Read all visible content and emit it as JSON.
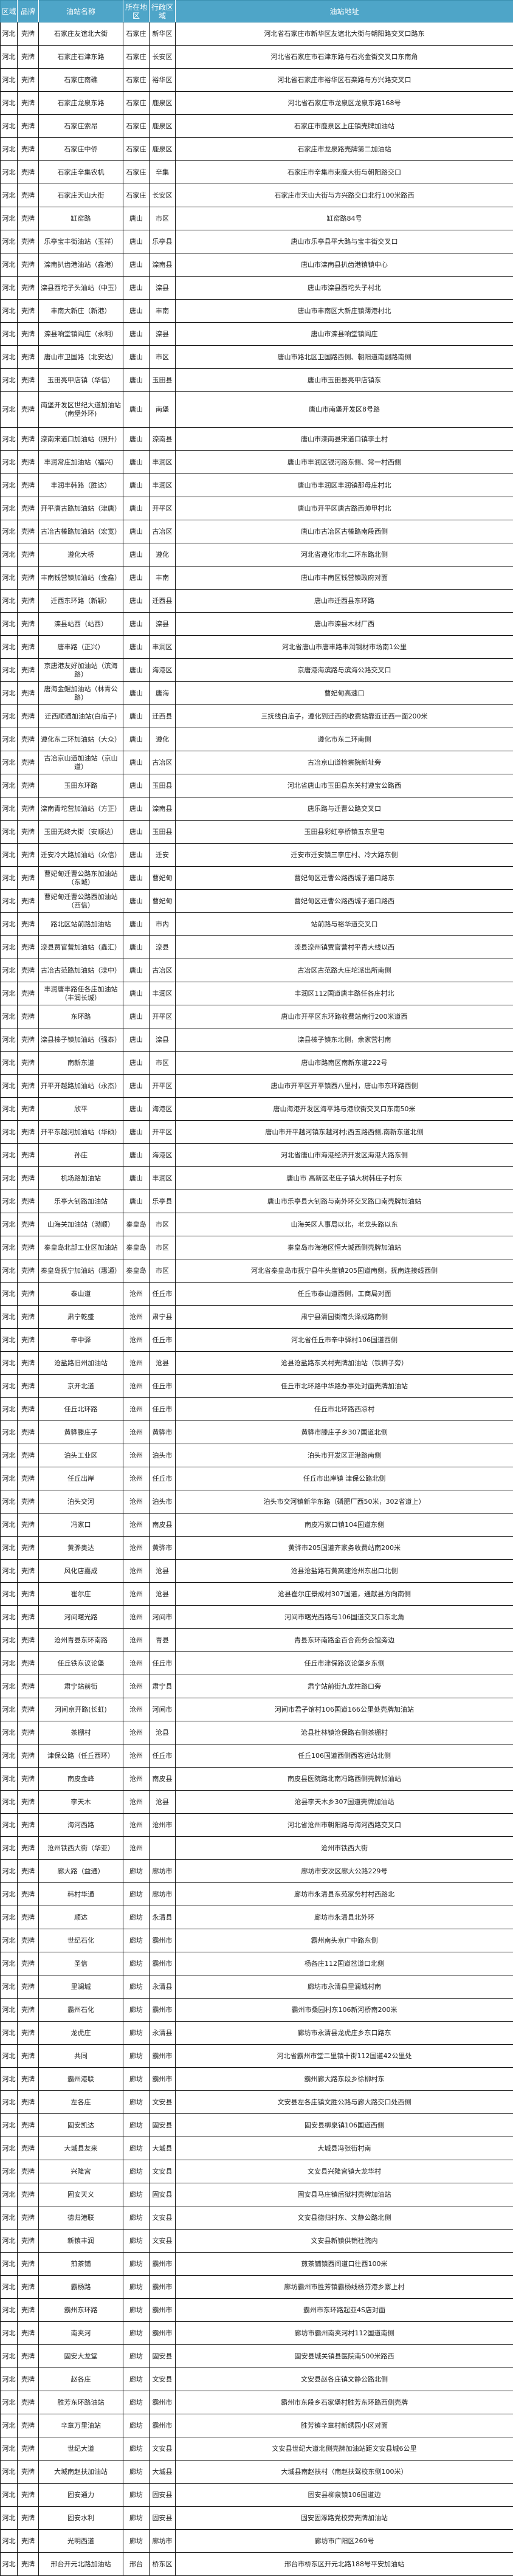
{
  "table": {
    "headers": [
      "区域",
      "品牌",
      "油站名称",
      "所在地区",
      "行政区域",
      "油站地址"
    ],
    "rows": [
      [
        "河北",
        "壳牌",
        "石家庄友谊北大街",
        "石家庄",
        "新华区",
        "河北省石家庄市新华区友谊北大街与朝阳路交叉口路东"
      ],
      [
        "河北",
        "壳牌",
        "石家庄石津东路",
        "石家庄",
        "长安区",
        "河北省石家庄市石津东路与石兆金街交叉口东南角"
      ],
      [
        "河北",
        "壳牌",
        "石家庄南礁",
        "石家庄",
        "裕华区",
        "河北省石家庄市裕华区石栾路与方兴路交叉口"
      ],
      [
        "河北",
        "壳牌",
        "石家庄龙泉东路",
        "石家庄",
        "鹿泉区",
        "河北省石家庄市龙泉区龙泉东路168号"
      ],
      [
        "河北",
        "壳牌",
        "石家庄索昂",
        "石家庄",
        "鹿泉区",
        "石家庄市鹿泉区上庄镇壳牌加油站"
      ],
      [
        "河北",
        "壳牌",
        "石家庄中侨",
        "石家庄",
        "鹿泉区",
        "石家庄市龙泉路壳牌第二加油站"
      ],
      [
        "河北",
        "壳牌",
        "石家庄辛集农机",
        "石家庄",
        "辛集",
        "石家庄市辛集市束鹿大街与朝阳路交口"
      ],
      [
        "河北",
        "壳牌",
        "石家庄天山大街",
        "石家庄",
        "长安区",
        "石家庄市天山大街与方兴路交口北行100米路西"
      ],
      [
        "河北",
        "壳牌",
        "缸窑路",
        "唐山",
        "市区",
        "缸窑路84号"
      ],
      [
        "河北",
        "壳牌",
        "乐亭宝丰街油站（玉祥）",
        "唐山",
        "乐亭县",
        "唐山市乐亭县平大路与宝丰街交叉口"
      ],
      [
        "河北",
        "壳牌",
        "滦南扒齿港油站（鑫港）",
        "唐山",
        "滦南县",
        "唐山市滦南县扒齿港镇镇中心"
      ],
      [
        "河北",
        "壳牌",
        "滦县西坨子头油站（中玉）",
        "唐山",
        "滦县",
        "唐山市滦县西坨头子村北"
      ],
      [
        "河北",
        "壳牌",
        "丰南大新庄（新港）",
        "唐山",
        "丰南",
        "唐山市丰南区大新庄镇薄港村北"
      ],
      [
        "河北",
        "壳牌",
        "滦县响堂镇阎庄（永明）",
        "唐山",
        "滦县",
        "唐山市滦县响堂镇阎庄"
      ],
      [
        "河北",
        "壳牌",
        "唐山市卫国路（北安达）",
        "唐山",
        "市区",
        "唐山市路北区卫国路西侧、朝阳道南副路南侧"
      ],
      [
        "河北",
        "壳牌",
        "玉田亮甲店镇（华信）",
        "唐山",
        "玉田县",
        "唐山市玉田县亮甲店镇东"
      ],
      [
        "河北",
        "壳牌",
        "南堡开发区世纪大道加油站\n(南堡外环)",
        "唐山",
        "南堡",
        "唐山市南堡开发区8号路"
      ],
      [
        "河北",
        "壳牌",
        "滦南宋道口加油站（照升）",
        "唐山",
        "滦南县",
        "唐山市滦南县宋道口镇李土村"
      ],
      [
        "河北",
        "壳牌",
        "丰润常庄加油站（福兴）",
        "唐山",
        "丰润区",
        "唐山市丰润区银河路东侧、常一村西侧"
      ],
      [
        "河北",
        "壳牌",
        "丰润丰韩路（胜达）",
        "唐山",
        "丰润区",
        "唐山市丰润区丰润镇那母庄村北"
      ],
      [
        "河北",
        "壳牌",
        "开平唐古路加油站（津唐）",
        "唐山",
        "开平区",
        "唐山市开平区唐古路西帅甲村北"
      ],
      [
        "河北",
        "壳牌",
        "古冶古榛路加油站（宏宽）",
        "唐山",
        "古冶区",
        "唐山市古冶区古榛路南段西侧"
      ],
      [
        "河北",
        "壳牌",
        "遵化大桥",
        "唐山",
        "遵化",
        "河北省遵化市北二环东路北侧"
      ],
      [
        "河北",
        "壳牌",
        "丰南钱营镇加油站（金鑫）",
        "唐山",
        "丰南",
        "唐山市丰南区钱营镇政府对面"
      ],
      [
        "河北",
        "壳牌",
        "迁西东环路（新颖）",
        "唐山",
        "迁西县",
        "唐山市迁西县东环路"
      ],
      [
        "河北",
        "壳牌",
        "滦县站西（站西）",
        "唐山",
        "滦县",
        "唐山市滦县木材厂西"
      ],
      [
        "河北",
        "壳牌",
        "唐丰路（正兴）",
        "唐山",
        "丰润区",
        "河北省唐山市唐丰路丰润钢材市场南1公里"
      ],
      [
        "河北",
        "壳牌",
        "京唐港友好加油站（滨海路）",
        "唐山",
        "海港区",
        "京唐港海滨路与滨海公路交叉口"
      ],
      [
        "河北",
        "壳牌",
        "唐海金鲲加油站（林青公路）",
        "唐山",
        "唐海",
        "曹妃甸高速口"
      ],
      [
        "河北",
        "壳牌",
        "迁西顺通加油站(白庙子)",
        "唐山",
        "迁西县",
        "三抚线白庙子，遵化到迁西的收费站靠近迁西一面200米"
      ],
      [
        "河北",
        "壳牌",
        "遵化东二环加油站（大众）",
        "唐山",
        "遵化",
        "遵化市东二环南侧"
      ],
      [
        "河北",
        "壳牌",
        "古冶京山道加油站（京山道）",
        "唐山",
        "古冶区",
        "古冶京山道检察院新址旁"
      ],
      [
        "河北",
        "壳牌",
        "玉田东环路",
        "唐山",
        "玉田县",
        "河北省唐山市玉田县东关村遵宝公路西"
      ],
      [
        "河北",
        "壳牌",
        "滦南青坨营加油站（方正）",
        "唐山",
        "滦南县",
        "唐乐路与迁曹公路交叉口"
      ],
      [
        "河北",
        "壳牌",
        "玉田无终大街（安顺达）",
        "唐山",
        "玉田县",
        "玉田县彩虹亭桥镇五东里屯"
      ],
      [
        "河北",
        "壳牌",
        "迁安冷大路加油站（众信）",
        "唐山",
        "迁安",
        "迁安市迁安镇三李庄村、冷大路东侧"
      ],
      [
        "河北",
        "壳牌",
        "曹妃甸迁曹公路东加油站（东城）",
        "唐山",
        "曹妃甸",
        "曹妃甸区迁曹公路西城子道口路东"
      ],
      [
        "河北",
        "壳牌",
        "曹妃甸迁曹公路西加油站（西信）",
        "唐山",
        "曹妃甸",
        "曹妃甸区迁曹公路西城子道口路西"
      ],
      [
        "河北",
        "壳牌",
        "路北区站前路加油站",
        "唐山",
        "市内",
        "站前路与裕华道交叉口"
      ],
      [
        "河北",
        "壳牌",
        "滦县贾官营加油站（鑫汇）",
        "唐山",
        "滦县",
        "滦县滦州镇贾官营村平青大线以西"
      ],
      [
        "河北",
        "壳牌",
        "古冶古范路加油站（滦中）",
        "唐山",
        "古冶区",
        "古冶区古范路大庄坨派出所南侧"
      ],
      [
        "河北",
        "壳牌",
        "丰润唐丰路任各庄加油站（丰润长城）",
        "唐山",
        "丰润区",
        "丰润区112国道唐丰路任各庄村北"
      ],
      [
        "河北",
        "壳牌",
        "东环路",
        "唐山",
        "开平区",
        "唐山市开平区东环路收费站南行200米道西"
      ],
      [
        "河北",
        "壳牌",
        "滦县榛子镇加油站（强泰）",
        "唐山",
        "滦县",
        "滦县榛子镇东北侧，余家营村南"
      ],
      [
        "河北",
        "壳牌",
        "南新东道",
        "唐山",
        "市区",
        "唐山市路南区南新东道222号"
      ],
      [
        "河北",
        "壳牌",
        "开平开越路加油站（永杰）",
        "唐山",
        "开平区",
        "唐山市开平区开平镇西八里村，唐山市东环路西侧"
      ],
      [
        "河北",
        "壳牌",
        "欣平",
        "唐山",
        "海港区",
        "唐山海港开发区海平路与港欣街交叉口东南50米"
      ],
      [
        "河北",
        "壳牌",
        "开平东越河加油站（华硕）",
        "唐山",
        "开平区",
        "唐山市开平越河镇东越河村;西五路西侧,南新东道北侧"
      ],
      [
        "河北",
        "壳牌",
        "孙庄",
        "唐山",
        "海港区",
        "河北省唐山市海港经济开发区海港大路东侧"
      ],
      [
        "河北",
        "壳牌",
        "机场路加油站",
        "唐山",
        "丰润区",
        "唐山市 高新区老庄子镇大树韩庄子村东"
      ],
      [
        "河北",
        "壳牌",
        "乐亭大钊路加油站",
        "唐山",
        "乐亭县",
        "唐山市乐亭县大钊路与南外环交叉路口南壳牌加油站"
      ],
      [
        "河北",
        "壳牌",
        "山海关加油站（渤顺）",
        "秦皇岛",
        "市区",
        "山海关区人事局以北，老龙头路以东"
      ],
      [
        "河北",
        "壳牌",
        "秦皇岛北部工业区加油站",
        "秦皇岛",
        "市区",
        "秦皇岛市海港区恒大城西侧壳牌加油站"
      ],
      [
        "河北",
        "壳牌",
        "秦皇岛抚宁加油站（惠通）",
        "秦皇岛",
        "市区",
        "河北省秦皇岛市抚宁县牛头崖镇205国道南侧，抚南连接线西侧"
      ],
      [
        "河北",
        "壳牌",
        "泰山道",
        "沧州",
        "任丘市",
        "任丘市泰山道西侧，工商局对面"
      ],
      [
        "河北",
        "壳牌",
        "肃宁乾盛",
        "沧州",
        "肃宁县",
        "肃宁县清园街南头泽成路南侧"
      ],
      [
        "河北",
        "壳牌",
        "辛中驿",
        "沧州",
        "任丘市",
        "河北省任丘市辛中驿村106国道西侧"
      ],
      [
        "河北",
        "壳牌",
        "沧盐路旧州加油站",
        "沧州",
        "沧县",
        "沧县沧盐路东关村壳牌加油站（铁狮子旁）"
      ],
      [
        "河北",
        "壳牌",
        "京开北道",
        "沧州",
        "任丘市",
        "任丘市北环路中华路办事处对面壳牌加油站"
      ],
      [
        "河北",
        "壳牌",
        "任丘北环路",
        "沧州",
        "任丘市",
        "任丘市北环路西凉村"
      ],
      [
        "河北",
        "壳牌",
        "黄骅滕庄子",
        "沧州",
        "黄骅市",
        "黄骅市滕庄子乡307国道北侧"
      ],
      [
        "河北",
        "壳牌",
        "泊头工业区",
        "沧州",
        "泊头市",
        "泊头市开发区正港路南侧"
      ],
      [
        "河北",
        "壳牌",
        "任丘出岸",
        "沧州",
        "任丘市",
        "任丘市出岸镇 津保公路北侧"
      ],
      [
        "河北",
        "壳牌",
        "泊头交河",
        "沧州",
        "泊头市",
        "泊头市交河镇新华东路（磷肥厂西50米，302省道上）"
      ],
      [
        "河北",
        "壳牌",
        "冯家口",
        "沧州",
        "南皮县",
        "南皮冯家口镇104国道东侧"
      ],
      [
        "河北",
        "壳牌",
        "黄骅奥达",
        "沧州",
        "黄骅市",
        "黄骅市205国道齐家务收费站南200米"
      ],
      [
        "河北",
        "壳牌",
        "风化店嘉成",
        "沧州",
        "沧县",
        "沧县沧盐路石黄高速沧州东出口北侧"
      ],
      [
        "河北",
        "壳牌",
        "崔尔庄",
        "沧州",
        "沧县",
        "沧县崔尔庄景成村307国道，通献县方向南侧"
      ],
      [
        "河北",
        "壳牌",
        "河间曙光路",
        "沧州",
        "河间市",
        "河间市曙光西路与106国道交叉口东北角"
      ],
      [
        "河北",
        "壳牌",
        "沧州青县东环南路",
        "沧州",
        "青县",
        "青县东环南路金百合商务会馆旁边"
      ],
      [
        "河北",
        "壳牌",
        "任丘铁东议论堡",
        "沧州",
        "任丘市",
        "任丘市津保路议论堡乡东侧"
      ],
      [
        "河北",
        "壳牌",
        "肃宁站前街",
        "沧州",
        "肃宁县",
        "肃宁站前街九龙柱路口旁"
      ],
      [
        "河北",
        "壳牌",
        "河间京开路(长虹)",
        "沧州",
        "河间市",
        "河间市君子馆村106国道166公里处壳牌加油站"
      ],
      [
        "河北",
        "壳牌",
        "茶棚村",
        "沧州",
        "沧县",
        "沧县杜林镇沧保路右侧茶棚村"
      ],
      [
        "河北",
        "壳牌",
        "津保公路（任丘西环）",
        "沧州",
        "任丘市",
        "任丘106国道西侧西客运站北侧"
      ],
      [
        "河北",
        "壳牌",
        "南皮金峰",
        "沧州",
        "南皮县",
        "南皮县医院路北南冯路西侧壳牌加油站"
      ],
      [
        "河北",
        "壳牌",
        "李天木",
        "沧州",
        "沧县",
        "沧县李天木乡307国道壳牌加油站"
      ],
      [
        "河北",
        "壳牌",
        "海河西路",
        "沧州",
        "沧州市",
        "河北省沧州市朝阳路与海河西路交叉口"
      ],
      [
        "河北",
        "壳牌",
        "沧州铁西大街（华亚）",
        "沧州",
        "",
        "沧州市铁西大街"
      ],
      [
        "河北",
        "壳牌",
        "廊大路（益通）",
        "廊坊",
        "廊坊市",
        "廊坊市安次区廊大公路229号"
      ],
      [
        "河北",
        "壳牌",
        "韩村华通",
        "廊坊",
        "廊坊市",
        "廊坊市永清县东苑家务村村西路北"
      ],
      [
        "河北",
        "壳牌",
        "顺达",
        "廊坊",
        "永清县",
        "廊坊市永清县北外环"
      ],
      [
        "河北",
        "壳牌",
        "世纪石化",
        "廊坊",
        "霸州市",
        "霸州南头京广中路东侧"
      ],
      [
        "河北",
        "壳牌",
        "圣信",
        "廊坊",
        "霸州市",
        "杨各庄112国道岔道口北侧"
      ],
      [
        "河北",
        "壳牌",
        "里澜城",
        "廊坊",
        "永清县",
        "廊坊市永清县里澜城村南"
      ],
      [
        "河北",
        "壳牌",
        "霸州石化",
        "廊坊",
        "霸州市",
        "霸州市桑园村东106新河桥南200米"
      ],
      [
        "河北",
        "壳牌",
        "龙虎庄",
        "廊坊",
        "永清县",
        "廊坊市永清县龙虎庄乡东口路东"
      ],
      [
        "河北",
        "壳牌",
        "共同",
        "廊坊",
        "霸州市",
        "河北省霸州市堂二里镇十街112国道42公里处"
      ],
      [
        "河北",
        "壳牌",
        "霸州港联",
        "廊坊",
        "霸州市",
        "霸州廊大路东段乡徐柳村东"
      ],
      [
        "河北",
        "壳牌",
        "左各庄",
        "廊坊",
        "文安县",
        "文安县左各庄镇文胜公路与廊大路交口处西侧"
      ],
      [
        "河北",
        "壳牌",
        "固安凯达",
        "廊坊",
        "固安县",
        "固安县柳泉镇106国道西侧"
      ],
      [
        "河北",
        "壳牌",
        "大城县友来",
        "廊坊",
        "大城县",
        "大城县冯张街村南"
      ],
      [
        "河北",
        "壳牌",
        "兴隆宫",
        "廊坊",
        "文安县",
        "文安县兴隆宫镇大龙华村"
      ],
      [
        "河北",
        "壳牌",
        "固安天义",
        "廊坊",
        "固安县",
        "固安县马庄镇后狱村壳牌加油站"
      ],
      [
        "河北",
        "壳牌",
        "德归港联",
        "廊坊",
        "文安县",
        "文安县德归村东、文静公路北侧"
      ],
      [
        "河北",
        "壳牌",
        "新镇丰润",
        "廊坊",
        "文安县",
        "文安县新镇供销社院内"
      ],
      [
        "河北",
        "壳牌",
        "煎茶铺",
        "廊坊",
        "霸州市",
        "煎茶铺镇西间道口往西100米"
      ],
      [
        "河北",
        "壳牌",
        "霸杨路",
        "廊坊",
        "霸州市",
        "廊坊霸州市胜芳镇霸杨线杨芬港乡寨上村"
      ],
      [
        "河北",
        "壳牌",
        "霸州东环路",
        "廊坊",
        "霸州市",
        "霸州市东环路起亚4S店对面"
      ],
      [
        "河北",
        "壳牌",
        "南夹河",
        "廊坊",
        "霸州市",
        "廊坊市霸州南夹河村112国道南侧"
      ],
      [
        "河北",
        "壳牌",
        "固安大龙堂",
        "廊坊",
        "固安县",
        "固安县城关镇县医院南500米路西"
      ],
      [
        "河北",
        "壳牌",
        "赵各庄",
        "廊坊",
        "文安县",
        "文安县赵各庄镇文静公路北侧"
      ],
      [
        "河北",
        "壳牌",
        "胜芳东环路油站",
        "廊坊",
        "霸州市",
        "霸州市东段乡石家堡村胜芳东环路西侧壳牌"
      ],
      [
        "河北",
        "壳牌",
        "辛章万里油站",
        "廊坊",
        "霸州市",
        "胜芳镇辛章村新绣园小区对面"
      ],
      [
        "河北",
        "壳牌",
        "世纪大道",
        "廊坊",
        "文安县",
        "文安县世纪大道北侧壳牌加油站距文安县城6公里"
      ],
      [
        "河北",
        "壳牌",
        "大城南赵扶加油站",
        "廊坊",
        "大城县",
        "大城县南赵扶村（南赵扶驾校东侧100米）"
      ],
      [
        "河北",
        "壳牌",
        "固安通力",
        "廊坊",
        "固安县",
        "固安县柳泉镇106国道边"
      ],
      [
        "河北",
        "壳牌",
        "固安水利",
        "廊坊",
        "固安县",
        "固安固涿路党校旁壳牌加油站"
      ],
      [
        "河北",
        "壳牌",
        "光明西道",
        "廊坊",
        "廊坊市",
        "廊坊市广阳区269号"
      ],
      [
        "河北",
        "壳牌",
        "邢台开元北路加油站",
        "邢台",
        "桥东区",
        "邢台市桥东区开元北路188号平安加油站"
      ]
    ]
  },
  "colors": {
    "header_bg": "#4ea5c8",
    "header_text": "#ffffff",
    "border": "#111111"
  }
}
